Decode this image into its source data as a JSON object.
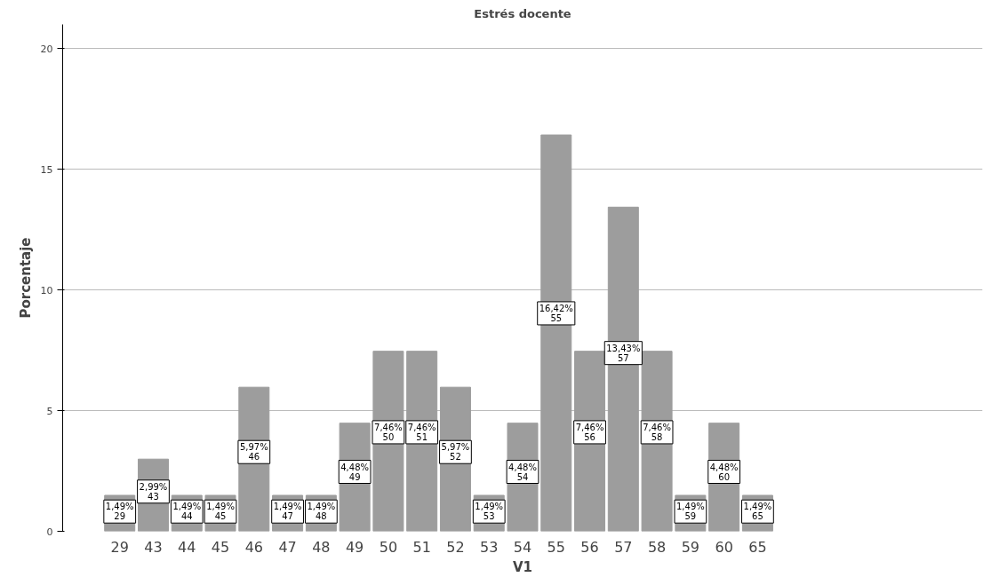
{
  "chart_data": {
    "type": "bar",
    "title": "Estrés docente",
    "xlabel": "V1",
    "ylabel": "Porcentaje",
    "categories": [
      "29",
      "43",
      "44",
      "45",
      "46",
      "47",
      "48",
      "49",
      "50",
      "51",
      "52",
      "53",
      "54",
      "55",
      "56",
      "57",
      "58",
      "59",
      "60",
      "65"
    ],
    "values": [
      1.49,
      2.99,
      1.49,
      1.49,
      5.97,
      1.49,
      1.49,
      4.48,
      7.46,
      7.46,
      5.97,
      1.49,
      4.48,
      16.42,
      7.46,
      13.43,
      7.46,
      1.49,
      4.48,
      1.49
    ],
    "value_labels": [
      "1,49%",
      "2,99%",
      "1,49%",
      "1,49%",
      "5,97%",
      "1,49%",
      "1,49%",
      "4,48%",
      "7,46%",
      "7,46%",
      "5,97%",
      "1,49%",
      "4,48%",
      "16,42%",
      "7,46%",
      "13,43%",
      "7,46%",
      "1,49%",
      "4,48%",
      "1,49%"
    ],
    "color": "#9d9d9d",
    "ylim": [
      0,
      21
    ],
    "yticks": [
      0,
      5,
      10,
      15,
      20
    ],
    "grid": "y"
  }
}
